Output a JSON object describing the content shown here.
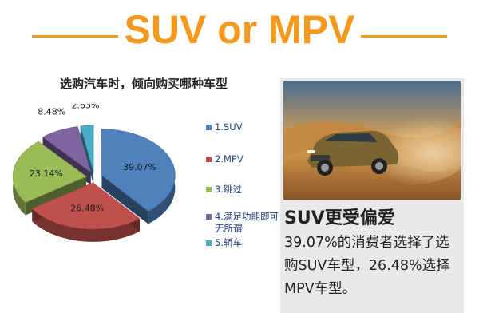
{
  "header": {
    "title": "SUV or MPV"
  },
  "chart_data": {
    "type": "pie",
    "title": "选购汽车时，倾向购买哪种车型",
    "categories": [
      "1.SUV",
      "2.MPV",
      "3.跳过",
      "4.满足功能即可，无所谓",
      "5.轿车"
    ],
    "values": [
      39.07,
      26.48,
      23.14,
      8.48,
      2.83
    ],
    "data_labels": [
      "39.07%",
      "26.48%",
      "23.14%",
      "8.48%",
      "2.83%"
    ],
    "colors": [
      "#4f81bd",
      "#c0504d",
      "#9bbb59",
      "#8064a2",
      "#4bacc6"
    ],
    "legend": {
      "placement": "right",
      "items": [
        "1.SUV",
        "2.MPV",
        "3.跳过",
        "4.满足功能即可，无所谓",
        "5.轿车"
      ]
    },
    "exploded": true,
    "three_d": true
  },
  "panel": {
    "heading": "SUV更受偏爱",
    "body": "39.07%的消费者选择了选购SUV车型，26.48%选择MPV车型。"
  }
}
